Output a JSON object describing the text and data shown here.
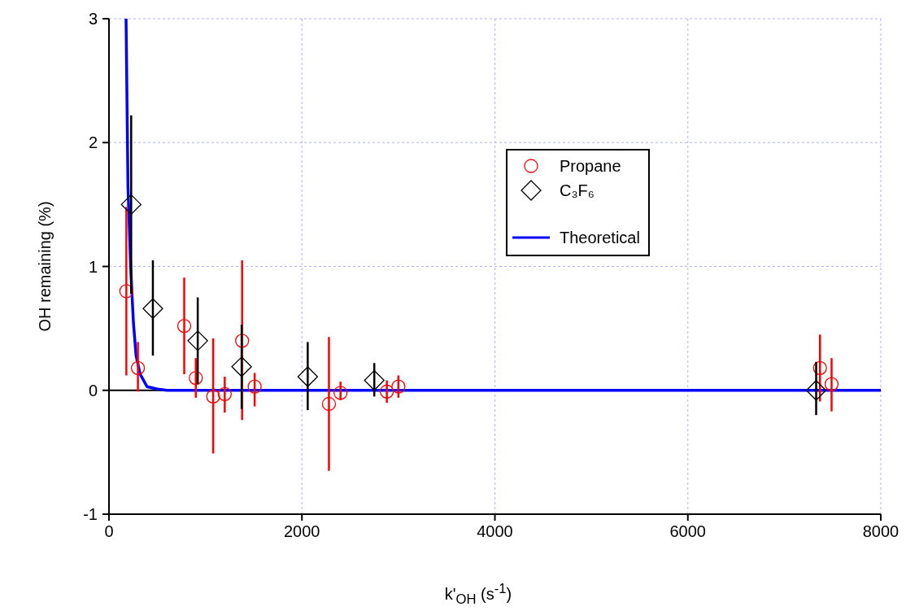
{
  "chart_data": {
    "type": "scatter",
    "xlabel": "k'$_{OH}$ (s$^{-1}$)",
    "ylabel": "OH remaining (%)",
    "xlim": [
      0,
      8000
    ],
    "xticks": [
      0,
      2000,
      4000,
      6000,
      8000
    ],
    "ylim": [
      -1,
      3
    ],
    "yticks": [
      -1,
      0,
      1,
      2,
      3
    ],
    "grid": true,
    "legend": "top right",
    "ref_lines": [
      {
        "axis": "y",
        "value": 0,
        "color": "#000000",
        "line_style": "solid"
      }
    ],
    "series": [
      {
        "name": "Propane",
        "marker": "circle",
        "color": "#ff0000",
        "x": [
          180,
          300,
          780,
          900,
          1080,
          1200,
          1380,
          1510,
          2280,
          2400,
          2880,
          3000,
          7370,
          7490
        ],
        "values": [
          0.8,
          0.18,
          0.52,
          0.1,
          -0.05,
          -0.03,
          0.4,
          0.03,
          -0.11,
          -0.02,
          -0.01,
          0.03,
          0.18,
          0.05
        ],
        "errors": [
          [
            0.12,
            1.48
          ],
          [
            -0.01,
            0.39
          ],
          [
            0.13,
            0.91
          ],
          [
            -0.06,
            0.26
          ],
          [
            -0.51,
            0.42
          ],
          [
            -0.18,
            0.11
          ],
          [
            -0.24,
            1.05
          ],
          [
            -0.13,
            0.14
          ],
          [
            -0.65,
            0.43
          ],
          [
            -0.08,
            0.07
          ],
          [
            -0.1,
            0.08
          ],
          [
            -0.06,
            0.12
          ],
          [
            -0.09,
            0.45
          ],
          [
            -0.17,
            0.26
          ]
        ]
      },
      {
        "name": "C₃F₆",
        "marker": "diamond",
        "color": "#000000",
        "x": [
          230,
          455,
          920,
          1375,
          2060,
          2750,
          7330
        ],
        "values": [
          1.5,
          0.66,
          0.4,
          0.19,
          0.11,
          0.08,
          0.0
        ],
        "errors": [
          [
            0.78,
            2.22
          ],
          [
            0.28,
            1.05
          ],
          [
            0.05,
            0.75
          ],
          [
            -0.15,
            0.53
          ],
          [
            -0.16,
            0.39
          ],
          [
            -0.05,
            0.22
          ],
          [
            -0.2,
            0.23
          ]
        ]
      },
      {
        "name": "Theoretical",
        "type": "line",
        "marker": "none",
        "color": "#0000ff",
        "x": [
          177,
          197,
          225,
          253,
          281,
          323,
          394,
          505,
          600,
          8000
        ],
        "values": [
          3.0,
          1.64,
          0.99,
          0.55,
          0.28,
          0.13,
          0.03,
          0.01,
          0,
          0
        ]
      }
    ]
  }
}
